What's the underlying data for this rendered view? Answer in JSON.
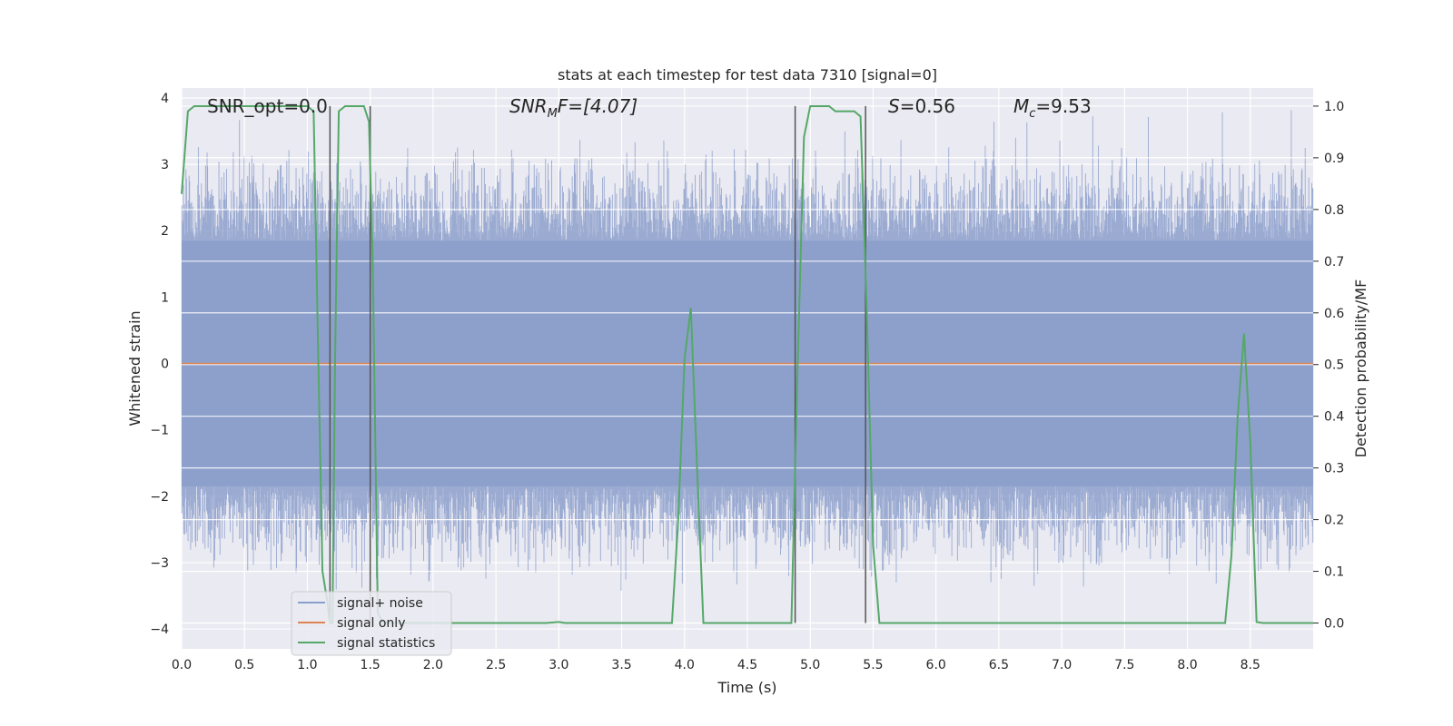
{
  "chart_data": {
    "type": "line",
    "title": "stats at each timestep for test data 7310 [signal=0]",
    "xlabel": "Time (s)",
    "ylabel_left": "Whitened strain",
    "ylabel_right": "Detection probability/MF",
    "xlim": [
      0,
      9
    ],
    "ylim_left": [
      -4.3,
      4.15
    ],
    "ylim_right": [
      -0.05,
      1.035
    ],
    "x_ticks": [
      "0.0",
      "0.5",
      "1.0",
      "1.5",
      "2.0",
      "2.5",
      "3.0",
      "3.5",
      "4.0",
      "4.5",
      "5.0",
      "5.5",
      "6.0",
      "6.5",
      "7.0",
      "7.5",
      "8.0",
      "8.5"
    ],
    "y_left_ticks": [
      "4",
      "3",
      "2",
      "1",
      "0",
      "−1",
      "−2",
      "−3",
      "−4"
    ],
    "y_right_ticks": [
      "1.0",
      "0.9",
      "0.8",
      "0.7",
      "0.6",
      "0.5",
      "0.4",
      "0.3",
      "0.2",
      "0.1",
      "0.0"
    ],
    "grid": true,
    "legend_position": "lower-left",
    "colors": {
      "background": "#eaeaf2",
      "noise": "#8c9fcb",
      "signal_only": "#dd8452",
      "statistics": "#55a868",
      "vlines": "#555555"
    },
    "annotations": [
      {
        "label_main": "SNR_opt=0.0"
      },
      {
        "label_main": "SNR",
        "label_sub": "M",
        "label_tail": "F=[4.07]"
      },
      {
        "label_main": "S",
        "label_tail": "=0.56"
      },
      {
        "label_main": "M",
        "label_sub": "c",
        "label_tail": "=9.53"
      }
    ],
    "series": [
      {
        "name": "signal+ noise",
        "style": "noise band",
        "typical_range": [
          -1.85,
          1.85
        ],
        "extreme_range": [
          -3.45,
          3.85
        ]
      },
      {
        "name": "signal only",
        "values_x": [
          0,
          9
        ],
        "values_y": [
          0,
          0
        ]
      },
      {
        "name": "signal statistics",
        "axis": "right",
        "x": [
          0.0,
          0.05,
          0.1,
          0.15,
          0.2,
          0.3,
          0.5,
          0.7,
          0.9,
          1.0,
          1.05,
          1.08,
          1.12,
          1.16,
          1.18,
          1.2,
          1.22,
          1.25,
          1.3,
          1.4,
          1.45,
          1.49,
          1.52,
          1.56,
          1.6,
          2.0,
          2.5,
          2.9,
          3.0,
          3.05,
          3.5,
          3.9,
          3.95,
          4.0,
          4.05,
          4.1,
          4.15,
          4.5,
          4.85,
          4.9,
          4.95,
          5.0,
          5.05,
          5.1,
          5.15,
          5.2,
          5.25,
          5.3,
          5.35,
          5.4,
          5.45,
          5.5,
          5.55,
          5.6,
          6.0,
          7.0,
          8.0,
          8.3,
          8.35,
          8.4,
          8.45,
          8.5,
          8.55,
          8.6,
          9.0
        ],
        "y": [
          0.83,
          0.99,
          1.0,
          1.0,
          1.0,
          1.0,
          1.0,
          1.0,
          1.0,
          1.0,
          0.99,
          0.6,
          0.1,
          0.04,
          0.0,
          0.0,
          0.5,
          0.99,
          1.0,
          1.0,
          1.0,
          0.97,
          0.7,
          0.02,
          0.0,
          0.0,
          0.0,
          0.0,
          0.002,
          0.0,
          0.0,
          0.0,
          0.2,
          0.51,
          0.61,
          0.3,
          0.0,
          0.0,
          0.0,
          0.5,
          0.94,
          1.0,
          1.0,
          1.0,
          1.0,
          0.99,
          0.99,
          0.99,
          0.99,
          0.98,
          0.6,
          0.15,
          0.0,
          0.0,
          0.0,
          0.0,
          0.0,
          0.0,
          0.13,
          0.4,
          0.56,
          0.35,
          0.002,
          0.0,
          0.0
        ]
      }
    ],
    "vertical_lines_x": [
      1.18,
      1.5,
      4.88,
      5.44
    ]
  }
}
